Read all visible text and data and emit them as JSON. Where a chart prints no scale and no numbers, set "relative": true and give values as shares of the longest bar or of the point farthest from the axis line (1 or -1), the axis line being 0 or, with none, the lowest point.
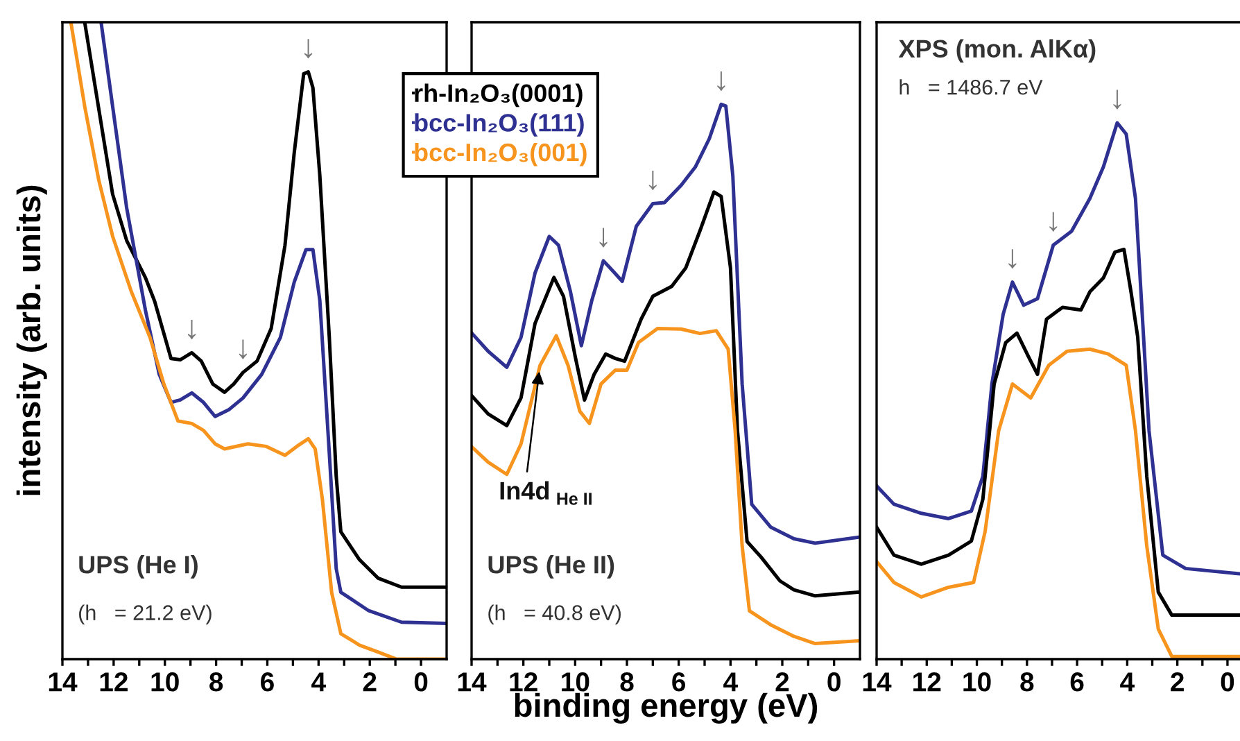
{
  "chart_data": [
    {
      "type": "line",
      "relative": true,
      "ylabel": "intensity (arb. units)",
      "xlim": [
        14,
        -1
      ],
      "xticks": [
        14,
        {
          "value": 13,
          "label": null
        },
        12,
        {
          "value": 11,
          "label": null
        },
        10,
        {
          "value": 9,
          "label": null
        },
        8,
        {
          "value": 7,
          "label": null
        },
        6,
        {
          "value": 5,
          "label": null
        },
        4,
        {
          "value": 3,
          "label": null
        },
        2,
        {
          "value": 1,
          "label": null
        },
        0
      ],
      "legend": "top right",
      "annotations": [
        "UPS (He I)",
        "(h   = 21.2 eV)",
        {
          "text": "↓",
          "x": 4.4,
          "y": 0.922
        },
        {
          "text": "↓",
          "x": 8.95,
          "y": 0.481
        },
        {
          "text": "↓",
          "x": 6.95,
          "y": 0.45
        }
      ],
      "series": [
        {
          "name": "rh-In₂O₃(0001)",
          "color": "#000000",
          "x": [
            13.13,
            12.04,
            11.49,
            10.76,
            10.4,
            9.76,
            9.4,
            8.95,
            8.58,
            8.13,
            7.67,
            7.31,
            6.95,
            6.4,
            5.85,
            5.31,
            4.95,
            4.58,
            4.4,
            4.22,
            3.95,
            3.58,
            3.31,
            3.13,
            2.4,
            1.67,
            0.76,
            -1.0
          ],
          "values": [
            1.0,
            0.73,
            0.657,
            0.599,
            0.562,
            0.472,
            0.47,
            0.481,
            0.468,
            0.432,
            0.419,
            0.432,
            0.45,
            0.468,
            0.519,
            0.65,
            0.795,
            0.919,
            0.922,
            0.897,
            0.759,
            0.505,
            0.287,
            0.2,
            0.156,
            0.127,
            0.113,
            0.113
          ]
        },
        {
          "name": "bcc-In₂O₃(111)",
          "color": "#2e3192",
          "x": [
            12.49,
            12.04,
            11.49,
            10.76,
            10.22,
            9.76,
            9.4,
            8.95,
            8.49,
            8.04,
            7.49,
            6.95,
            6.22,
            5.49,
            4.95,
            4.49,
            4.22,
            3.95,
            3.58,
            3.31,
            3.13,
            2.04,
            0.76,
            -1.0
          ],
          "values": [
            1.0,
            0.868,
            0.708,
            0.548,
            0.447,
            0.403,
            0.407,
            0.418,
            0.403,
            0.381,
            0.392,
            0.41,
            0.447,
            0.505,
            0.592,
            0.643,
            0.643,
            0.563,
            0.323,
            0.142,
            0.105,
            0.076,
            0.058,
            0.056
          ]
        },
        {
          "name": "bcc-In₂O₃(001)",
          "color": "#f7941d",
          "x": [
            13.67,
            13.13,
            12.58,
            12.04,
            11.31,
            10.58,
            10.04,
            9.49,
            8.95,
            8.49,
            8.04,
            7.67,
            6.76,
            6.04,
            5.31,
            4.85,
            4.4,
            4.13,
            3.85,
            3.49,
            3.13,
            2.4,
            1.67,
            0.95,
            -1.0
          ],
          "values": [
            1.0,
            0.868,
            0.752,
            0.664,
            0.577,
            0.505,
            0.432,
            0.374,
            0.37,
            0.359,
            0.338,
            0.33,
            0.338,
            0.334,
            0.32,
            0.334,
            0.346,
            0.33,
            0.251,
            0.105,
            0.04,
            0.022,
            0.011,
            0.0,
            0.0
          ]
        }
      ]
    },
    {
      "type": "line",
      "relative": true,
      "xlabel": "binding energy (eV)",
      "xlim": [
        14,
        -1
      ],
      "xticks": [
        14,
        {
          "value": 13,
          "label": null
        },
        12,
        {
          "value": 11,
          "label": null
        },
        10,
        {
          "value": 9,
          "label": null
        },
        8,
        {
          "value": 7,
          "label": null
        },
        6,
        {
          "value": 5,
          "label": null
        },
        4,
        {
          "value": 3,
          "label": null
        },
        2,
        {
          "value": 1,
          "label": null
        },
        0
      ],
      "annotations": [
        "UPS (He II)",
        "(h   = 40.8 eV)",
        {
          "text": "In4d $_{He II}$",
          "x": 11.36,
          "y": 0.529
        },
        {
          "text": "↓",
          "x": 4.36,
          "y": 1.0
        },
        {
          "text": "↓",
          "x": 7.0,
          "y": 0.821
        },
        {
          "text": "↓",
          "x": 8.91,
          "y": 0.718
        }
      ],
      "series": [
        {
          "color": "#2e3192",
          "x": [
            14,
            13.36,
            12.64,
            12.09,
            11.55,
            11.0,
            10.64,
            10.18,
            9.76,
            9.36,
            8.91,
            8.55,
            8.18,
            7.64,
            7.0,
            6.55,
            5.91,
            5.36,
            4.82,
            4.36,
            4.18,
            3.91,
            3.55,
            3.18,
            2.45,
            1.55,
            0.73,
            -1.0
          ],
          "values": [
            0.588,
            0.555,
            0.526,
            0.58,
            0.696,
            0.762,
            0.746,
            0.662,
            0.565,
            0.646,
            0.718,
            0.7,
            0.681,
            0.78,
            0.821,
            0.823,
            0.854,
            0.887,
            0.938,
            1.0,
            0.997,
            0.871,
            0.496,
            0.279,
            0.238,
            0.217,
            0.209,
            0.22
          ]
        },
        {
          "color": "#000000",
          "x": [
            14,
            13.36,
            12.64,
            12.09,
            11.55,
            10.82,
            10.45,
            10.0,
            9.64,
            9.27,
            8.82,
            8.45,
            8.09,
            7.45,
            7.0,
            6.27,
            5.73,
            5.18,
            4.64,
            4.36,
            4.0,
            3.73,
            3.36,
            2.82,
            2.09,
            1.55,
            0.73,
            -1.0
          ],
          "values": [
            0.475,
            0.442,
            0.421,
            0.471,
            0.605,
            0.688,
            0.654,
            0.546,
            0.467,
            0.513,
            0.55,
            0.542,
            0.537,
            0.613,
            0.654,
            0.672,
            0.705,
            0.772,
            0.842,
            0.834,
            0.705,
            0.412,
            0.212,
            0.184,
            0.141,
            0.125,
            0.114,
            0.121
          ]
        },
        {
          "color": "#f7941d",
          "x": [
            14,
            13.36,
            12.64,
            12.09,
            11.36,
            10.73,
            10.27,
            9.82,
            9.45,
            9.0,
            8.45,
            8.0,
            7.55,
            6.82,
            5.91,
            5.18,
            4.55,
            4.09,
            3.82,
            3.55,
            3.27,
            2.45,
            1.55,
            0.73,
            -1.0
          ],
          "values": [
            0.383,
            0.355,
            0.333,
            0.388,
            0.529,
            0.583,
            0.529,
            0.447,
            0.425,
            0.496,
            0.521,
            0.521,
            0.571,
            0.596,
            0.595,
            0.587,
            0.592,
            0.559,
            0.412,
            0.204,
            0.087,
            0.062,
            0.041,
            0.028,
            0.033
          ]
        }
      ]
    },
    {
      "type": "line",
      "relative": true,
      "xlim": [
        14,
        -0.5
      ],
      "xticks": [
        14,
        {
          "value": 13,
          "label": null
        },
        12,
        {
          "value": 11,
          "label": null
        },
        10,
        {
          "value": 9,
          "label": null
        },
        8,
        {
          "value": 7,
          "label": null
        },
        6,
        {
          "value": 5,
          "label": null
        },
        4,
        {
          "value": 3,
          "label": null
        },
        2,
        {
          "value": 1,
          "label": null
        },
        0
      ],
      "annotations": [
        "XPS (mon. AlKα)",
        "h   = 1486.7 eV",
        {
          "text": "↓",
          "x": 4.4,
          "y": 1.0
        },
        {
          "text": "↓",
          "x": 6.95,
          "y": 0.772
        },
        {
          "text": "↓",
          "x": 8.58,
          "y": 0.703
        }
      ],
      "series": [
        {
          "color": "#2e3192",
          "x": [
            14,
            13.31,
            12.22,
            11.13,
            10.22,
            9.76,
            9.4,
            8.95,
            8.58,
            8.13,
            7.58,
            6.95,
            6.22,
            5.49,
            4.95,
            4.4,
            4.04,
            3.67,
            3.13,
            2.58,
            1.67,
            -0.5
          ],
          "values": [
            0.323,
            0.289,
            0.272,
            0.262,
            0.276,
            0.341,
            0.513,
            0.643,
            0.703,
            0.66,
            0.672,
            0.772,
            0.798,
            0.859,
            0.918,
            1.0,
            0.979,
            0.859,
            0.426,
            0.194,
            0.169,
            0.159
          ]
        },
        {
          "color": "#000000",
          "x": [
            14,
            13.31,
            12.22,
            11.13,
            10.22,
            9.76,
            9.31,
            8.85,
            8.4,
            7.95,
            7.58,
            7.22,
            6.58,
            5.85,
            5.49,
            4.95,
            4.49,
            4.13,
            3.85,
            3.58,
            3.22,
            2.76,
            2.22,
            -0.5
          ],
          "values": [
            0.246,
            0.194,
            0.177,
            0.194,
            0.22,
            0.298,
            0.513,
            0.59,
            0.608,
            0.565,
            0.531,
            0.634,
            0.656,
            0.651,
            0.685,
            0.711,
            0.759,
            0.764,
            0.685,
            0.6,
            0.341,
            0.125,
            0.082,
            0.082
          ]
        },
        {
          "color": "#f7941d",
          "x": [
            14,
            13.31,
            12.22,
            11.13,
            10.13,
            9.67,
            9.13,
            8.58,
            7.85,
            7.13,
            6.4,
            5.49,
            4.76,
            4.04,
            3.67,
            3.22,
            2.76,
            2.22,
            -0.5
          ],
          "values": [
            0.182,
            0.143,
            0.116,
            0.134,
            0.143,
            0.238,
            0.426,
            0.513,
            0.487,
            0.548,
            0.574,
            0.578,
            0.569,
            0.548,
            0.426,
            0.211,
            0.056,
            0.005,
            0.005
          ]
        }
      ]
    }
  ]
}
